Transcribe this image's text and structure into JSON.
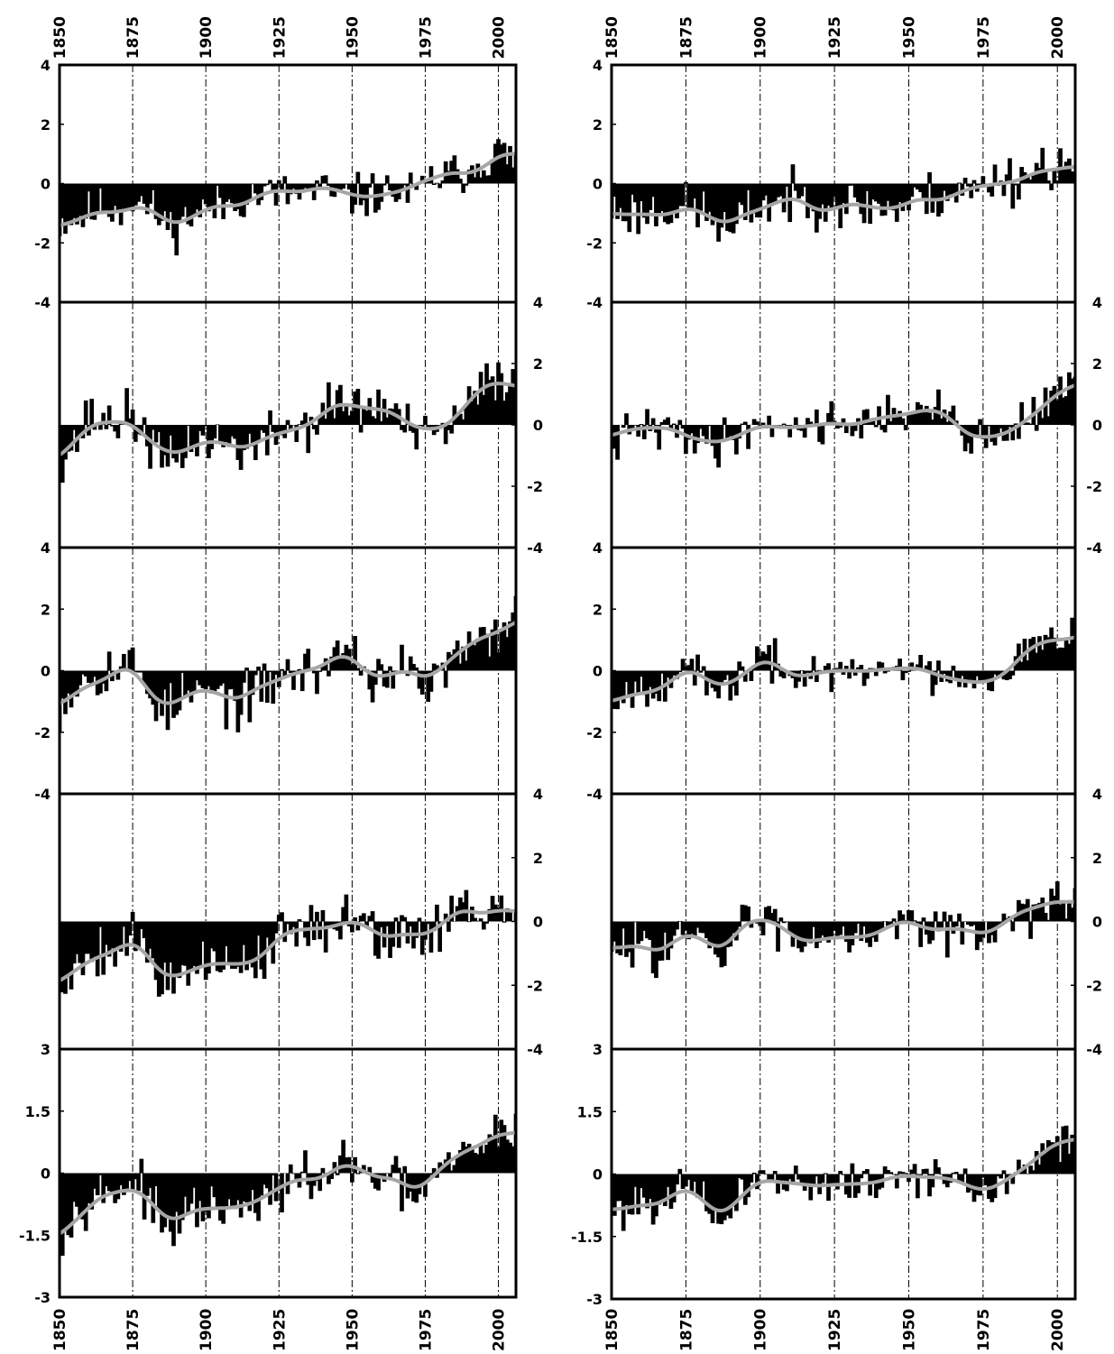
{
  "x_axis": {
    "top_labels": [
      "1850",
      "1875",
      "1900",
      "1925",
      "1950",
      "1975",
      "2000"
    ],
    "bottom_labels": [
      "1850",
      "1875",
      "1900",
      "1925",
      "1950",
      "1975",
      "2000"
    ],
    "start": 1850,
    "end": 2006,
    "step": 25
  },
  "colors": {
    "bars": "#000000",
    "smooth": "#a6a6a6",
    "gridline": "#000000"
  },
  "chart_data": [
    {
      "type": "bar",
      "column": "left",
      "row": 1,
      "ylim": [
        -4,
        4
      ],
      "y_ticks": [
        "4",
        "2",
        "0",
        "-2",
        "-4"
      ],
      "y_tick_side": "left",
      "x_start": 1850,
      "x_end": 2006,
      "anchors": [
        [
          1850,
          -1.3
        ],
        [
          1858,
          -1.1
        ],
        [
          1865,
          -0.8
        ],
        [
          1870,
          -0.9
        ],
        [
          1875,
          -0.5
        ],
        [
          1880,
          -0.8
        ],
        [
          1885,
          -1.2
        ],
        [
          1888,
          -1.5
        ],
        [
          1892,
          -1.3
        ],
        [
          1896,
          -1.0
        ],
        [
          1900,
          -0.9
        ],
        [
          1905,
          -0.8
        ],
        [
          1910,
          -0.6
        ],
        [
          1915,
          -0.4
        ],
        [
          1925,
          -0.35
        ],
        [
          1935,
          -0.4
        ],
        [
          1940,
          -0.2
        ],
        [
          1945,
          -0.5
        ],
        [
          1955,
          -0.4
        ],
        [
          1965,
          -0.3
        ],
        [
          1972,
          -0.35
        ],
        [
          1978,
          0.2
        ],
        [
          1985,
          0.3
        ],
        [
          1992,
          0.6
        ],
        [
          2000,
          1.1
        ],
        [
          2006,
          0.7
        ]
      ],
      "noise": 0.7,
      "seed": 11
    },
    {
      "type": "bar",
      "column": "right",
      "row": 1,
      "ylim": [
        -4,
        4
      ],
      "y_ticks": [
        "4",
        "2",
        "0",
        "-2",
        "-4"
      ],
      "y_tick_side": "left",
      "x_start": 1850,
      "x_end": 2006,
      "anchors": [
        [
          1850,
          -0.9
        ],
        [
          1860,
          -1.0
        ],
        [
          1870,
          -0.8
        ],
        [
          1880,
          -0.9
        ],
        [
          1887,
          -1.4
        ],
        [
          1890,
          -1.8
        ],
        [
          1894,
          -1.2
        ],
        [
          1898,
          -0.8
        ],
        [
          1905,
          -0.6
        ],
        [
          1915,
          -0.5
        ],
        [
          1925,
          -0.6
        ],
        [
          1935,
          -0.8
        ],
        [
          1940,
          -0.7
        ],
        [
          1945,
          -0.9
        ],
        [
          1955,
          -0.5
        ],
        [
          1965,
          -0.3
        ],
        [
          1975,
          -0.2
        ],
        [
          1980,
          0.3
        ],
        [
          1985,
          0.1
        ],
        [
          1995,
          0.6
        ],
        [
          2000,
          0.7
        ],
        [
          2006,
          0.3
        ]
      ],
      "noise": 0.8,
      "seed": 23
    },
    {
      "type": "bar",
      "column": "left",
      "row": 2,
      "ylim": [
        -4,
        4
      ],
      "y_ticks": [
        "4",
        "2",
        "0",
        "-2",
        "-4"
      ],
      "y_tick_side": "right",
      "x_start": 1850,
      "x_end": 2006,
      "anchors": [
        [
          1850,
          -1.0
        ],
        [
          1855,
          -0.6
        ],
        [
          1860,
          0.2
        ],
        [
          1868,
          0.1
        ],
        [
          1872,
          0.3
        ],
        [
          1878,
          -0.1
        ],
        [
          1884,
          -1.0
        ],
        [
          1887,
          -1.4
        ],
        [
          1892,
          -0.9
        ],
        [
          1896,
          -0.4
        ],
        [
          1902,
          -0.5
        ],
        [
          1910,
          -0.7
        ],
        [
          1918,
          -0.8
        ],
        [
          1925,
          -0.2
        ],
        [
          1935,
          0.0
        ],
        [
          1940,
          0.3
        ],
        [
          1945,
          0.8
        ],
        [
          1952,
          0.5
        ],
        [
          1960,
          0.6
        ],
        [
          1965,
          0.4
        ],
        [
          1970,
          -0.3
        ],
        [
          1975,
          -0.5
        ],
        [
          1985,
          0.0
        ],
        [
          1995,
          1.2
        ],
        [
          2000,
          1.6
        ],
        [
          2006,
          1.4
        ]
      ],
      "noise": 0.8,
      "seed": 37
    },
    {
      "type": "bar",
      "column": "right",
      "row": 2,
      "ylim": [
        -4,
        4
      ],
      "y_ticks": [
        "4",
        "2",
        "0",
        "-2",
        "-4"
      ],
      "y_tick_side": "right",
      "x_start": 1850,
      "x_end": 2006,
      "anchors": [
        [
          1850,
          -0.6
        ],
        [
          1860,
          -0.1
        ],
        [
          1870,
          -0.2
        ],
        [
          1878,
          -0.3
        ],
        [
          1885,
          -0.7
        ],
        [
          1890,
          -0.4
        ],
        [
          1898,
          0.0
        ],
        [
          1905,
          0.1
        ],
        [
          1912,
          -0.1
        ],
        [
          1920,
          0.1
        ],
        [
          1930,
          0.1
        ],
        [
          1938,
          0.0
        ],
        [
          1945,
          0.6
        ],
        [
          1952,
          0.2
        ],
        [
          1960,
          0.5
        ],
        [
          1965,
          0.3
        ],
        [
          1972,
          -0.5
        ],
        [
          1978,
          -0.5
        ],
        [
          1985,
          -0.1
        ],
        [
          1995,
          0.6
        ],
        [
          2000,
          1.2
        ],
        [
          2006,
          1.1
        ]
      ],
      "noise": 0.65,
      "seed": 41
    },
    {
      "type": "bar",
      "column": "left",
      "row": 3,
      "ylim": [
        -4,
        4
      ],
      "y_ticks": [
        "4",
        "2",
        "0",
        "-2",
        "-4"
      ],
      "y_tick_side": "left",
      "x_start": 1850,
      "x_end": 2006,
      "anchors": [
        [
          1850,
          -1.1
        ],
        [
          1855,
          -0.5
        ],
        [
          1860,
          -0.1
        ],
        [
          1870,
          0.1
        ],
        [
          1875,
          0.2
        ],
        [
          1880,
          -0.5
        ],
        [
          1884,
          -1.1
        ],
        [
          1888,
          -1.3
        ],
        [
          1892,
          -0.9
        ],
        [
          1897,
          -0.7
        ],
        [
          1905,
          -0.8
        ],
        [
          1912,
          -1.1
        ],
        [
          1918,
          -0.7
        ],
        [
          1925,
          -0.2
        ],
        [
          1935,
          0.0
        ],
        [
          1940,
          0.1
        ],
        [
          1945,
          0.5
        ],
        [
          1948,
          0.9
        ],
        [
          1952,
          0.3
        ],
        [
          1958,
          -0.3
        ],
        [
          1965,
          0.1
        ],
        [
          1972,
          -0.3
        ],
        [
          1976,
          -0.5
        ],
        [
          1982,
          0.1
        ],
        [
          1990,
          0.7
        ],
        [
          1998,
          1.0
        ],
        [
          2006,
          2.1
        ]
      ],
      "noise": 0.8,
      "seed": 53
    },
    {
      "type": "bar",
      "column": "right",
      "row": 3,
      "ylim": [
        -4,
        4
      ],
      "y_ticks": [
        "4",
        "2",
        "0",
        "-2",
        "-4"
      ],
      "y_tick_side": "left",
      "x_start": 1850,
      "x_end": 2006,
      "anchors": [
        [
          1850,
          -0.9
        ],
        [
          1858,
          -0.6
        ],
        [
          1868,
          -0.3
        ],
        [
          1875,
          0.1
        ],
        [
          1880,
          -0.3
        ],
        [
          1885,
          -0.8
        ],
        [
          1890,
          -0.5
        ],
        [
          1895,
          0.0
        ],
        [
          1900,
          0.4
        ],
        [
          1905,
          0.2
        ],
        [
          1910,
          -0.3
        ],
        [
          1915,
          0.0
        ],
        [
          1925,
          -0.1
        ],
        [
          1935,
          -0.1
        ],
        [
          1942,
          0.0
        ],
        [
          1948,
          0.3
        ],
        [
          1952,
          0.1
        ],
        [
          1958,
          -0.2
        ],
        [
          1965,
          0.0
        ],
        [
          1972,
          -0.3
        ],
        [
          1978,
          -0.2
        ],
        [
          1985,
          0.3
        ],
        [
          1995,
          0.9
        ],
        [
          2000,
          1.1
        ],
        [
          2006,
          1.6
        ]
      ],
      "noise": 0.6,
      "seed": 67
    },
    {
      "type": "bar",
      "column": "left",
      "row": 4,
      "ylim": [
        -4,
        4
      ],
      "y_ticks": [
        "4",
        "2",
        "0",
        "-2",
        "-4"
      ],
      "y_tick_side": "right",
      "x_start": 1850,
      "x_end": 2006,
      "anchors": [
        [
          1850,
          -2.2
        ],
        [
          1853,
          -1.8
        ],
        [
          1857,
          -1.1
        ],
        [
          1865,
          -0.9
        ],
        [
          1870,
          -0.7
        ],
        [
          1875,
          -0.3
        ],
        [
          1880,
          -1.0
        ],
        [
          1884,
          -1.8
        ],
        [
          1890,
          -1.6
        ],
        [
          1895,
          -1.3
        ],
        [
          1900,
          -1.3
        ],
        [
          1905,
          -1.5
        ],
        [
          1912,
          -1.2
        ],
        [
          1918,
          -1.1
        ],
        [
          1925,
          -0.5
        ],
        [
          1932,
          -0.3
        ],
        [
          1938,
          -0.5
        ],
        [
          1943,
          -0.3
        ],
        [
          1948,
          0.6
        ],
        [
          1952,
          0.2
        ],
        [
          1958,
          -0.4
        ],
        [
          1965,
          -0.4
        ],
        [
          1970,
          -0.1
        ],
        [
          1975,
          -0.7
        ],
        [
          1980,
          0.0
        ],
        [
          1986,
          0.7
        ],
        [
          1990,
          0.4
        ],
        [
          1995,
          -0.1
        ],
        [
          2000,
          0.3
        ],
        [
          2006,
          0.3
        ]
      ],
      "noise": 0.8,
      "seed": 79
    },
    {
      "type": "bar",
      "column": "right",
      "row": 4,
      "ylim": [
        -4,
        4
      ],
      "y_ticks": [
        "4",
        "2",
        "0",
        "-2",
        "-4"
      ],
      "y_tick_side": "right",
      "x_start": 1850,
      "x_end": 2006,
      "anchors": [
        [
          1850,
          -1.1
        ],
        [
          1855,
          -0.9
        ],
        [
          1860,
          -0.5
        ],
        [
          1866,
          -0.9
        ],
        [
          1872,
          -0.5
        ],
        [
          1878,
          -0.4
        ],
        [
          1882,
          -0.9
        ],
        [
          1886,
          -1.2
        ],
        [
          1890,
          -0.8
        ],
        [
          1896,
          0.3
        ],
        [
          1900,
          0.0
        ],
        [
          1908,
          -0.2
        ],
        [
          1915,
          -0.6
        ],
        [
          1922,
          -0.3
        ],
        [
          1930,
          -0.3
        ],
        [
          1938,
          -0.4
        ],
        [
          1942,
          -0.2
        ],
        [
          1948,
          0.2
        ],
        [
          1955,
          0.0
        ],
        [
          1962,
          -0.2
        ],
        [
          1968,
          -0.2
        ],
        [
          1975,
          -0.7
        ],
        [
          1980,
          -0.1
        ],
        [
          1986,
          0.5
        ],
        [
          1992,
          0.3
        ],
        [
          2000,
          0.5
        ],
        [
          2006,
          0.6
        ]
      ],
      "noise": 0.65,
      "seed": 83
    },
    {
      "type": "bar",
      "column": "left",
      "row": 5,
      "ylim": [
        -3,
        3
      ],
      "y_ticks": [
        "3",
        "1.5",
        "0",
        "-1.5",
        "-3"
      ],
      "y_tick_side": "left",
      "x_start": 1850,
      "x_end": 2006,
      "anchors": [
        [
          1850,
          -1.5
        ],
        [
          1853,
          -1.3
        ],
        [
          1857,
          -0.7
        ],
        [
          1862,
          -0.5
        ],
        [
          1868,
          -0.5
        ],
        [
          1874,
          -0.2
        ],
        [
          1878,
          -0.3
        ],
        [
          1882,
          -0.9
        ],
        [
          1886,
          -1.4
        ],
        [
          1890,
          -1.3
        ],
        [
          1895,
          -0.9
        ],
        [
          1900,
          -0.8
        ],
        [
          1905,
          -1.0
        ],
        [
          1912,
          -0.9
        ],
        [
          1920,
          -0.7
        ],
        [
          1926,
          -0.3
        ],
        [
          1932,
          -0.2
        ],
        [
          1938,
          -0.2
        ],
        [
          1942,
          -0.1
        ],
        [
          1947,
          0.4
        ],
        [
          1952,
          -0.1
        ],
        [
          1958,
          -0.1
        ],
        [
          1965,
          -0.2
        ],
        [
          1970,
          -0.6
        ],
        [
          1975,
          -0.4
        ],
        [
          1980,
          0.0
        ],
        [
          1987,
          0.4
        ],
        [
          1993,
          0.6
        ],
        [
          2000,
          1.0
        ],
        [
          2006,
          1.1
        ]
      ],
      "noise": 0.5,
      "seed": 97
    },
    {
      "type": "bar",
      "column": "right",
      "row": 5,
      "ylim": [
        -3,
        3
      ],
      "y_ticks": [
        "3",
        "1.5",
        "0",
        "-1.5",
        "-3"
      ],
      "y_tick_side": "left",
      "x_start": 1850,
      "x_end": 2006,
      "anchors": [
        [
          1850,
          -0.9
        ],
        [
          1855,
          -0.8
        ],
        [
          1860,
          -0.6
        ],
        [
          1868,
          -0.6
        ],
        [
          1875,
          -0.4
        ],
        [
          1880,
          -0.5
        ],
        [
          1885,
          -1.1
        ],
        [
          1890,
          -1.0
        ],
        [
          1895,
          -0.3
        ],
        [
          1900,
          0.0
        ],
        [
          1905,
          -0.2
        ],
        [
          1912,
          -0.3
        ],
        [
          1920,
          -0.2
        ],
        [
          1928,
          -0.2
        ],
        [
          1935,
          -0.2
        ],
        [
          1942,
          -0.2
        ],
        [
          1948,
          0.1
        ],
        [
          1953,
          -0.1
        ],
        [
          1958,
          -0.1
        ],
        [
          1965,
          -0.1
        ],
        [
          1970,
          -0.3
        ],
        [
          1976,
          -0.5
        ],
        [
          1982,
          -0.2
        ],
        [
          1988,
          0.2
        ],
        [
          1995,
          0.6
        ],
        [
          2000,
          0.8
        ],
        [
          2006,
          0.8
        ]
      ],
      "noise": 0.45,
      "seed": 101
    }
  ]
}
